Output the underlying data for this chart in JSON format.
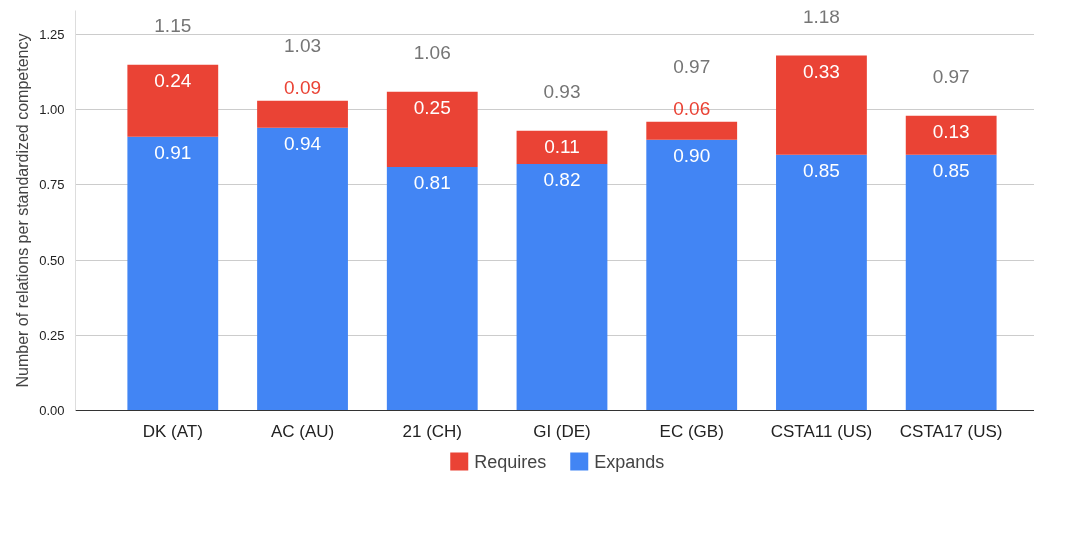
{
  "chart_data": {
    "type": "bar",
    "stacked": true,
    "ylabel": "Number of relations per standardized competency",
    "categories": [
      "DK (AT)",
      "AC (AU)",
      "21 (CH)",
      "GI (DE)",
      "EC (GB)",
      "CSTA11 (US)",
      "CSTA17 (US)"
    ],
    "series": [
      {
        "name": "Expands",
        "color": "#4285f4",
        "values": [
          0.91,
          0.94,
          0.81,
          0.82,
          0.9,
          0.85,
          0.85
        ],
        "value_labels": [
          "0.91",
          "0.94",
          "0.81",
          "0.82",
          "0.90",
          "0.85",
          "0.85"
        ]
      },
      {
        "name": "Requires",
        "color": "#ea4335",
        "values": [
          0.24,
          0.09,
          0.25,
          0.11,
          0.06,
          0.33,
          0.13
        ],
        "value_labels": [
          "0.24",
          "0.09",
          "0.25",
          "0.11",
          "0.06",
          "0.33",
          "0.13"
        ]
      }
    ],
    "totals": [
      "1.15",
      "1.03",
      "1.06",
      "0.93",
      "0.97",
      "1.18",
      "0.97"
    ],
    "data_labels": true,
    "ylim": [
      0,
      1.33
    ],
    "yticks": [
      {
        "value": 0,
        "label": "0.00"
      },
      {
        "value": 0.25,
        "label": "0.25"
      },
      {
        "value": 0.5,
        "label": "0.50"
      },
      {
        "value": 0.75,
        "label": "0.75"
      },
      {
        "value": 1.0,
        "label": "1.00"
      },
      {
        "value": 1.25,
        "label": "1.25"
      }
    ],
    "grid": "y",
    "legend": "bottom"
  }
}
